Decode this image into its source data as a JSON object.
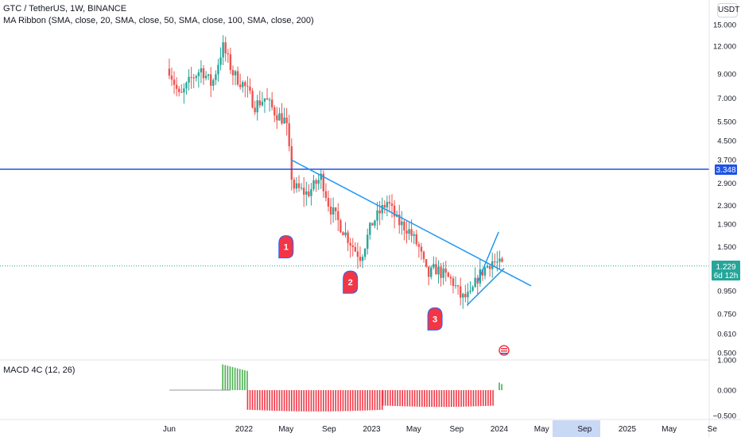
{
  "header": {
    "symbol_line": "GTC / TetherUS, 1W, BINANCE",
    "ma_line": "MA Ribbon (SMA, close, 20, SMA, close, 50, SMA, close, 100, SMA, close, 200)",
    "macd_line": "MACD 4C (12, 26)",
    "currency": "USDT"
  },
  "price_scale": {
    "ticks": [
      "15.000",
      "12.000",
      "9.000",
      "7.000",
      "5.500",
      "4.500",
      "3.700",
      "2.900",
      "2.300",
      "1.900",
      "1.500",
      "0.950",
      "0.750",
      "0.610",
      "0.500"
    ],
    "hline_label": "3.348",
    "last_label": "1.229",
    "countdown": "6d 12h"
  },
  "macd_scale": {
    "ticks": [
      "1.000",
      "0.000",
      "−0.500"
    ]
  },
  "time_axis": {
    "labels": [
      "Jun",
      "2022",
      "May",
      "Sep",
      "2023",
      "May",
      "Sep",
      "2024",
      "May",
      "Sep",
      "2025",
      "May",
      "Se"
    ],
    "highlighted": "Sep"
  },
  "markers": [
    "1",
    "2",
    "3"
  ],
  "colors": {
    "up": "#26a69a",
    "down": "#ef5350",
    "trend": "#2196f3",
    "hline": "#1e53e5",
    "macd_pos": "#4caf50",
    "macd_neg": "#f23645",
    "marker": "#f23645",
    "last": "#26a69a"
  },
  "chart_data": [
    {
      "type": "candlestick",
      "title": "GTC / TetherUS, 1W, BINANCE",
      "scale": "log",
      "ylim": [
        0.45,
        19
      ],
      "x_range": [
        "2021-06-01",
        "2025-10-01"
      ],
      "horizontal_line": 3.348,
      "last_price": 1.229,
      "anchors": [
        {
          "date": "2021-06-01",
          "price": 9.5
        },
        {
          "date": "2021-07-01",
          "price": 7.0
        },
        {
          "date": "2021-08-01",
          "price": 8.5
        },
        {
          "date": "2021-09-01",
          "price": 9.5
        },
        {
          "date": "2021-10-01",
          "price": 8.0
        },
        {
          "date": "2021-11-01",
          "price": 12.0
        },
        {
          "date": "2021-12-01",
          "price": 9.0
        },
        {
          "date": "2022-01-01",
          "price": 8.0
        },
        {
          "date": "2022-02-01",
          "price": 6.5
        },
        {
          "date": "2022-03-01",
          "price": 7.0
        },
        {
          "date": "2022-04-01",
          "price": 6.0
        },
        {
          "date": "2022-05-01",
          "price": 5.5
        },
        {
          "date": "2022-05-20",
          "price": 2.8
        },
        {
          "date": "2022-07-01",
          "price": 2.6
        },
        {
          "date": "2022-08-10",
          "price": 3.1
        },
        {
          "date": "2022-09-01",
          "price": 2.3
        },
        {
          "date": "2022-10-01",
          "price": 1.9
        },
        {
          "date": "2022-11-15",
          "price": 1.45
        },
        {
          "date": "2022-12-01",
          "price": 1.35
        },
        {
          "date": "2023-01-01",
          "price": 1.9
        },
        {
          "date": "2023-02-15",
          "price": 2.4
        },
        {
          "date": "2023-03-15",
          "price": 1.95
        },
        {
          "date": "2023-04-15",
          "price": 1.8
        },
        {
          "date": "2023-05-15",
          "price": 1.5
        },
        {
          "date": "2023-06-10",
          "price": 1.1
        },
        {
          "date": "2023-07-01",
          "price": 1.2
        },
        {
          "date": "2023-08-20",
          "price": 1.05
        },
        {
          "date": "2023-09-15",
          "price": 0.88
        },
        {
          "date": "2023-10-10",
          "price": 0.9
        },
        {
          "date": "2023-11-01",
          "price": 1.1
        },
        {
          "date": "2023-12-10",
          "price": 1.3
        },
        {
          "date": "2024-01-10",
          "price": 1.229
        }
      ],
      "annotations": {
        "descending_trendline": [
          [
            "2022-05-15",
            3.7
          ],
          [
            "2024-04-01",
            1.0
          ]
        ],
        "rising_channel_upper": [
          [
            "2023-11-01",
            1.05
          ],
          [
            "2023-12-30",
            1.75
          ]
        ],
        "rising_channel_lower": [
          [
            "2023-10-01",
            0.82
          ],
          [
            "2024-01-15",
            1.2
          ]
        ],
        "markers": [
          {
            "label": "1",
            "date": "2022-05-01",
            "price": 1.5
          },
          {
            "label": "2",
            "date": "2022-11-01",
            "price": 1.04
          },
          {
            "label": "3",
            "date": "2023-07-01",
            "price": 0.71
          }
        ]
      }
    },
    {
      "type": "bar",
      "title": "MACD 4C (12, 26)",
      "ylim": [
        -0.5,
        1.0
      ],
      "segments": [
        {
          "from": "2021-06-01",
          "to": "2021-10-31",
          "value": 0.0
        },
        {
          "from": "2021-11-01",
          "to": "2022-01-10",
          "value": 0.85
        },
        {
          "from": "2022-01-11",
          "to": "2023-02-01",
          "value": -0.42
        },
        {
          "from": "2023-02-02",
          "to": "2023-12-20",
          "value": -0.33
        },
        {
          "from": "2024-01-01",
          "to": "2024-01-10",
          "value": 0.25
        }
      ]
    }
  ]
}
